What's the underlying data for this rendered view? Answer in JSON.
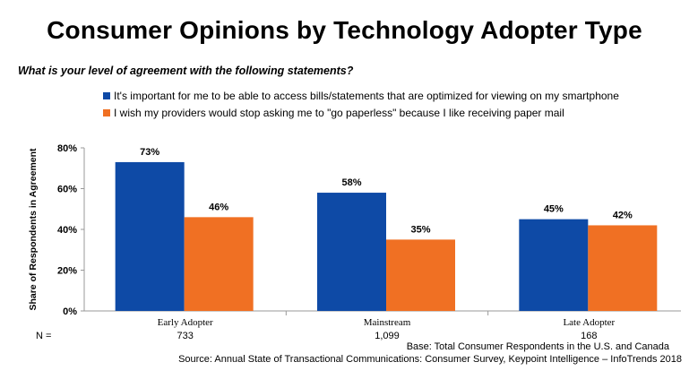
{
  "title": "Consumer Opinions by Technology Adopter Type",
  "question": "What is your level of agreement with the following statements?",
  "colors": {
    "series1": "#0E4AA6",
    "series2": "#F07023",
    "axis": "#999999"
  },
  "chart_data": {
    "type": "bar",
    "categories": [
      "Early Adopter",
      "Mainstream",
      "Late Adopter"
    ],
    "series": [
      {
        "name": "It's important for me to be able to access bills/statements that are optimized for viewing on my smartphone",
        "values": [
          73,
          58,
          45
        ],
        "labels": [
          "73%",
          "58%",
          "45%"
        ]
      },
      {
        "name": "I wish my providers would stop asking me to \"go paperless\" because I like receiving paper mail",
        "values": [
          46,
          35,
          42
        ],
        "labels": [
          "46%",
          "35%",
          "42%"
        ]
      }
    ],
    "ylabel": "Share of Respondents in Agreement",
    "ylim": [
      0,
      80
    ],
    "yticks": [
      0,
      20,
      40,
      60,
      80
    ],
    "ytick_labels": [
      "0%",
      "20%",
      "40%",
      "60%",
      "80%"
    ],
    "grid": false,
    "legend_position": "top"
  },
  "n_row": {
    "label": "N =",
    "values": [
      "733",
      "1,099",
      "168"
    ]
  },
  "base_note": "Base: Total Consumer Respondents in the U.S. and Canada",
  "source_note": "Source: Annual State of Transactional Communications: Consumer Survey, Keypoint Intelligence – InfoTrends 2018"
}
